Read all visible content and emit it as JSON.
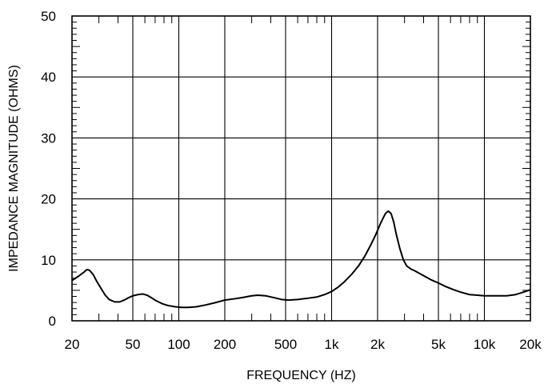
{
  "chart_data": {
    "type": "line",
    "xlabel": "FREQUENCY  (HZ)",
    "ylabel": "IMPEDANCE MAGNITUDE  (OHMS)",
    "x_scale": "log",
    "xlim": [
      20,
      20000
    ],
    "ylim": [
      0,
      50
    ],
    "grid": true,
    "x_ticks": [
      20,
      50,
      100,
      200,
      500,
      1000,
      2000,
      5000,
      10000,
      20000
    ],
    "x_tick_labels": [
      "20",
      "50",
      "100",
      "200",
      "500",
      "1k",
      "2k",
      "5k",
      "10k",
      "20k"
    ],
    "y_ticks": [
      0,
      10,
      20,
      30,
      40,
      50
    ],
    "y_tick_labels": [
      "0",
      "10",
      "20",
      "30",
      "40",
      "50"
    ],
    "colors": {
      "line": "#000000",
      "grid": "#000000",
      "background": "#ffffff"
    },
    "series": [
      {
        "x": [
          20,
          22,
          24,
          25,
          26,
          27.5,
          29,
          31,
          33,
          35,
          38,
          41,
          44,
          47,
          50,
          54,
          58,
          62,
          66,
          71,
          78,
          85,
          95,
          105,
          115,
          130,
          150,
          175,
          200,
          230,
          260,
          300,
          330,
          370,
          420,
          470,
          520,
          600,
          700,
          800,
          900,
          1000,
          1100,
          1200,
          1350,
          1500,
          1650,
          1800,
          1950,
          2100,
          2250,
          2350,
          2450,
          2550,
          2650,
          2800,
          2950,
          3100,
          3300,
          3500,
          4000,
          4500,
          5000,
          5600,
          6300,
          7000,
          8000,
          9000,
          10000,
          11000,
          12000,
          13000,
          14000,
          15000,
          16000,
          17000,
          18000,
          19000,
          20000
        ],
        "y": [
          6.6,
          7.3,
          8.0,
          8.4,
          8.3,
          7.6,
          6.5,
          5.3,
          4.2,
          3.5,
          3.1,
          3.1,
          3.4,
          3.8,
          4.1,
          4.3,
          4.4,
          4.2,
          3.8,
          3.3,
          2.8,
          2.5,
          2.3,
          2.2,
          2.2,
          2.3,
          2.6,
          3.0,
          3.4,
          3.6,
          3.8,
          4.1,
          4.2,
          4.1,
          3.8,
          3.5,
          3.4,
          3.5,
          3.7,
          3.9,
          4.3,
          4.8,
          5.5,
          6.3,
          7.6,
          9.0,
          10.6,
          12.4,
          14.2,
          16.1,
          17.6,
          18.0,
          17.6,
          16.2,
          14.2,
          11.8,
          10.0,
          9.0,
          8.5,
          8.2,
          7.4,
          6.7,
          6.2,
          5.6,
          5.1,
          4.7,
          4.3,
          4.2,
          4.1,
          4.1,
          4.1,
          4.1,
          4.1,
          4.2,
          4.3,
          4.5,
          4.7,
          4.9,
          5.1
        ]
      }
    ]
  }
}
